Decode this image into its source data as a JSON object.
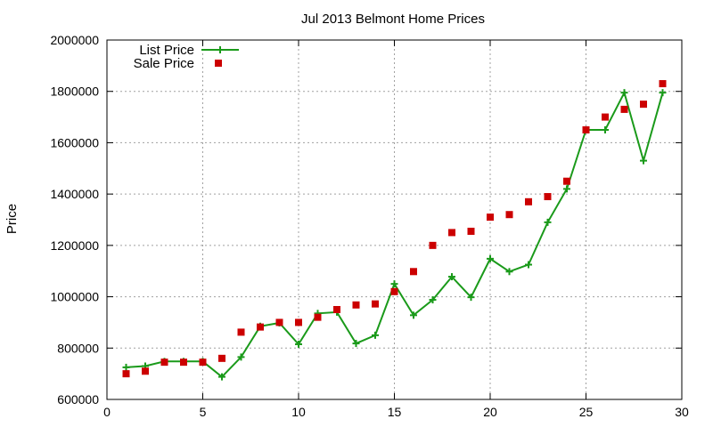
{
  "chart_data": {
    "type": "line",
    "title": "Jul 2013 Belmont Home Prices",
    "xlabel": "",
    "ylabel": "Price",
    "xlim": [
      0,
      30
    ],
    "ylim": [
      600000,
      2000000
    ],
    "x_ticks": [
      0,
      5,
      10,
      15,
      20,
      25,
      30
    ],
    "y_ticks": [
      600000,
      800000,
      1000000,
      1200000,
      1400000,
      1600000,
      1800000,
      2000000
    ],
    "grid": true,
    "legend_position": "top-left",
    "x": [
      1,
      2,
      3,
      4,
      5,
      6,
      7,
      8,
      9,
      10,
      11,
      12,
      13,
      14,
      15,
      16,
      17,
      18,
      19,
      20,
      21,
      22,
      23,
      24,
      25,
      26,
      27,
      28,
      29
    ],
    "series": [
      {
        "name": "List Price",
        "style": "line-with-plus-markers",
        "color": "#1a9a1a",
        "values": [
          725000,
          730000,
          748000,
          748000,
          748000,
          688000,
          765000,
          885000,
          898000,
          815000,
          935000,
          940000,
          818000,
          850000,
          1050000,
          928000,
          988000,
          1078000,
          998000,
          1148000,
          1098000,
          1125000,
          1290000,
          1420000,
          1650000,
          1650000,
          1795000,
          1530000,
          1795000
        ]
      },
      {
        "name": "Sale Price",
        "style": "square-markers",
        "color": "#cc0000",
        "values": [
          700000,
          710000,
          745000,
          745000,
          745000,
          760000,
          862000,
          882000,
          900000,
          900000,
          920000,
          950000,
          968000,
          972000,
          1020000,
          1098000,
          1200000,
          1250000,
          1255000,
          1310000,
          1320000,
          1370000,
          1390000,
          1450000,
          1650000,
          1700000,
          1730000,
          1750000,
          1830000
        ]
      }
    ]
  }
}
